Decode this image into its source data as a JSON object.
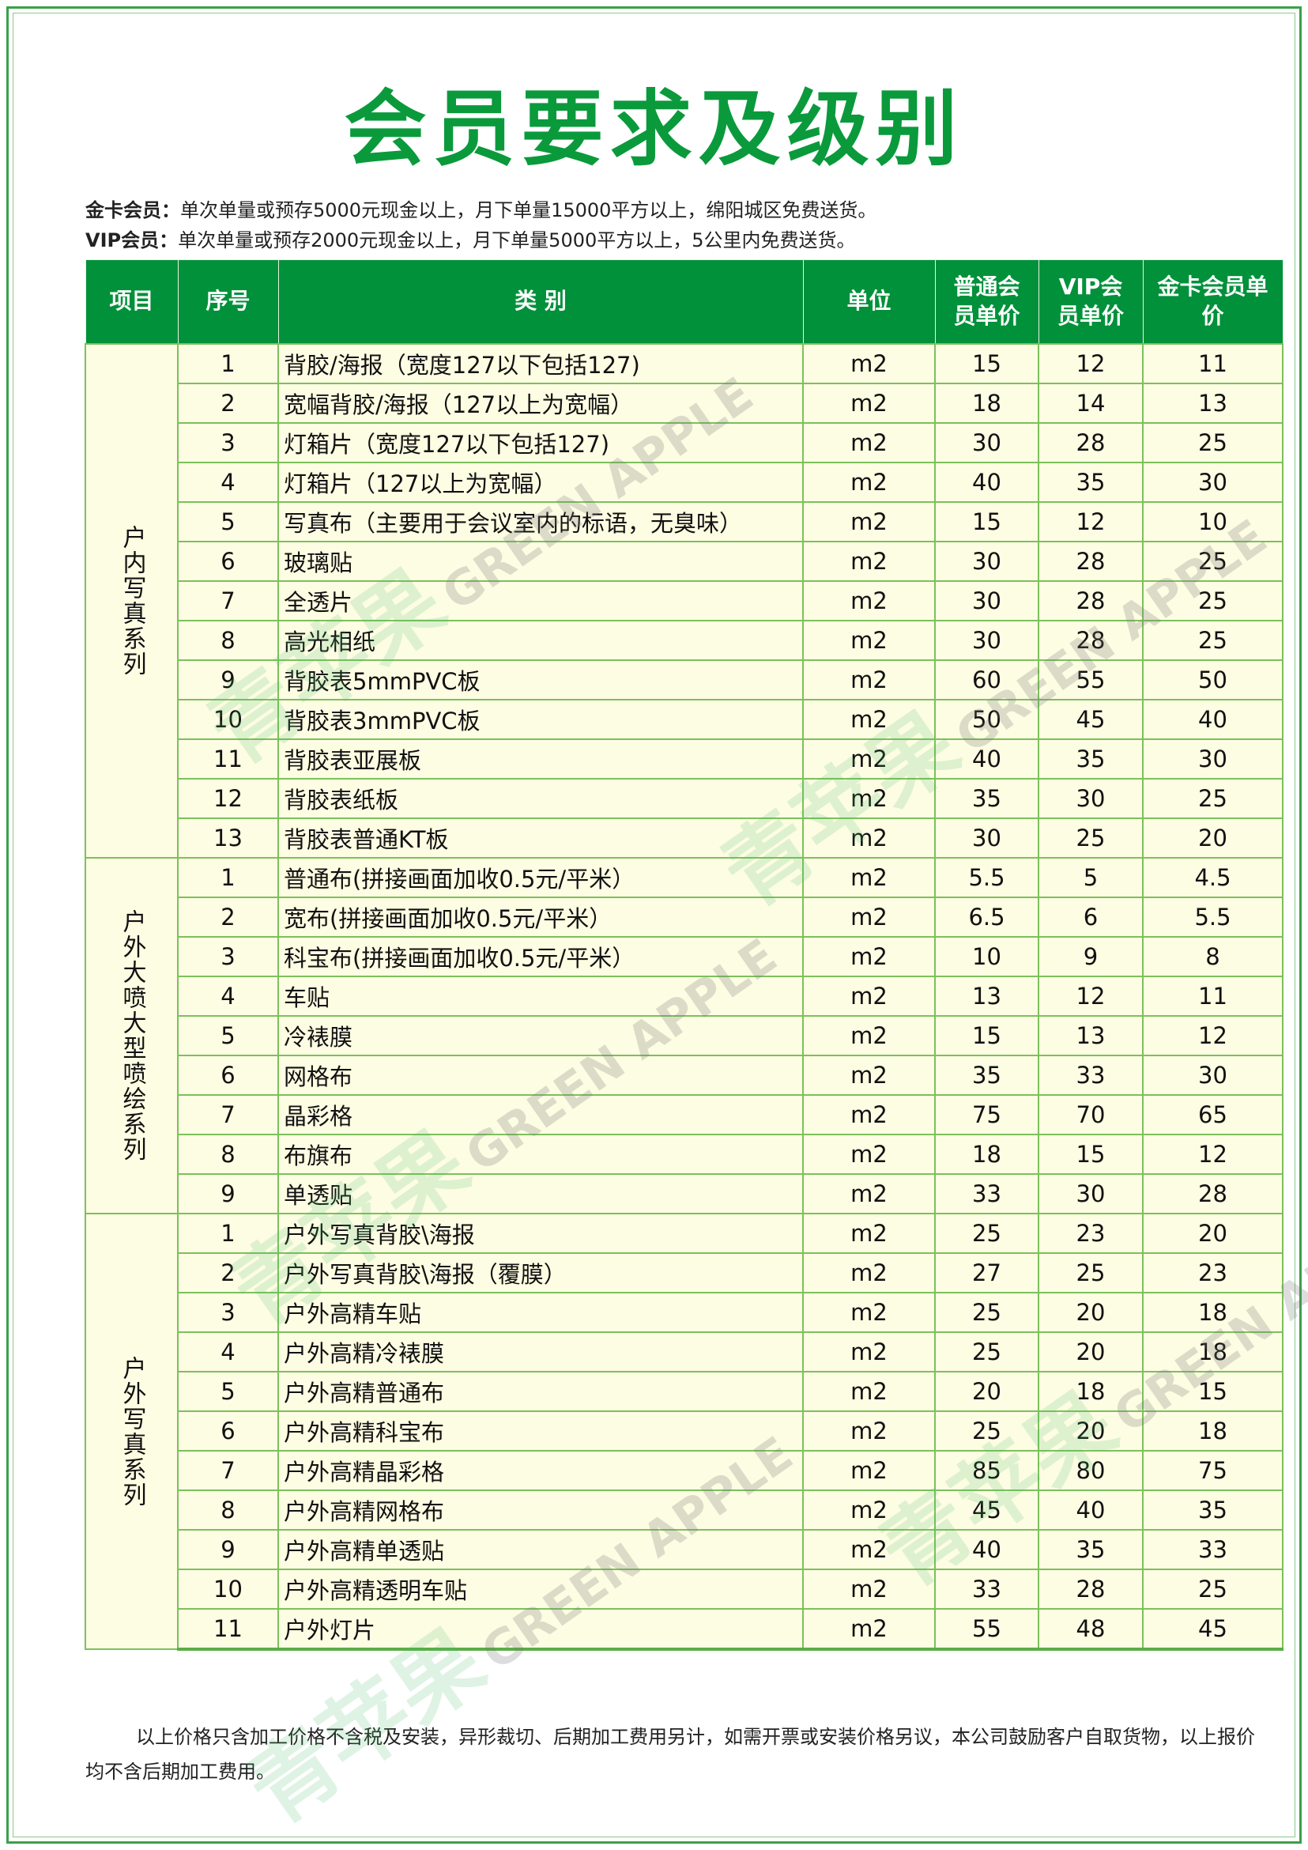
{
  "title": "会员要求及级别",
  "requirements": [
    {
      "label": "金卡会员：",
      "text": "单次单量或预存5000元现金以上，月下单量15000平方以上，绵阳城区免费送货。"
    },
    {
      "label": "VIP会员：",
      "text": "单次单量或预存2000元现金以上，月下单量5000平方以上，5公里内免费送货。"
    }
  ],
  "table": {
    "headers": [
      "项目",
      "序号",
      "类 别",
      "单位",
      "普通会员单价",
      "VIP会员单价",
      "金卡会员单价"
    ],
    "sections": [
      {
        "name": "户内写真系列",
        "rows": [
          [
            "1",
            "背胶/海报（宽度127以下包括127)",
            "m2",
            "15",
            "12",
            "11"
          ],
          [
            "2",
            "宽幅背胶/海报（127以上为宽幅）",
            "m2",
            "18",
            "14",
            "13"
          ],
          [
            "3",
            "灯箱片（宽度127以下包括127)",
            "m2",
            "30",
            "28",
            "25"
          ],
          [
            "4",
            "灯箱片（127以上为宽幅）",
            "m2",
            "40",
            "35",
            "30"
          ],
          [
            "5",
            "写真布（主要用于会议室内的标语，无臭味）",
            "m2",
            "15",
            "12",
            "10"
          ],
          [
            "6",
            "玻璃贴",
            "m2",
            "30",
            "28",
            "25"
          ],
          [
            "7",
            "全透片",
            "m2",
            "30",
            "28",
            "25"
          ],
          [
            "8",
            "高光相纸",
            "m2",
            "30",
            "28",
            "25"
          ],
          [
            "9",
            "背胶表5mmPVC板",
            "m2",
            "60",
            "55",
            "50"
          ],
          [
            "10",
            "背胶表3mmPVC板",
            "m2",
            "50",
            "45",
            "40"
          ],
          [
            "11",
            "背胶表亚展板",
            "m2",
            "40",
            "35",
            "30"
          ],
          [
            "12",
            "背胶表纸板",
            "m2",
            "35",
            "30",
            "25"
          ],
          [
            "13",
            "背胶表普通KT板",
            "m2",
            "30",
            "25",
            "20"
          ]
        ]
      },
      {
        "name": "户外大喷大型喷绘系列",
        "rows": [
          [
            "1",
            "普通布(拼接画面加收0.5元/平米）",
            "m2",
            "5.5",
            "5",
            "4.5"
          ],
          [
            "2",
            "宽布(拼接画面加收0.5元/平米）",
            "m2",
            "6.5",
            "6",
            "5.5"
          ],
          [
            "3",
            "科宝布(拼接画面加收0.5元/平米）",
            "m2",
            "10",
            "9",
            "8"
          ],
          [
            "4",
            "车贴",
            "m2",
            "13",
            "12",
            "11"
          ],
          [
            "5",
            "冷裱膜",
            "m2",
            "15",
            "13",
            "12"
          ],
          [
            "6",
            "网格布",
            "m2",
            "35",
            "33",
            "30"
          ],
          [
            "7",
            "晶彩格",
            "m2",
            "75",
            "70",
            "65"
          ],
          [
            "8",
            "布旗布",
            "m2",
            "18",
            "15",
            "12"
          ],
          [
            "9",
            "单透贴",
            "m2",
            "33",
            "30",
            "28"
          ]
        ]
      },
      {
        "name": "户外写真系列",
        "rows": [
          [
            "1",
            "户外写真背胶\\海报",
            "m2",
            "25",
            "23",
            "20"
          ],
          [
            "2",
            "户外写真背胶\\海报（覆膜）",
            "m2",
            "27",
            "25",
            "23"
          ],
          [
            "3",
            "户外高精车贴",
            "m2",
            "25",
            "20",
            "18"
          ],
          [
            "4",
            "户外高精冷裱膜",
            "m2",
            "25",
            "20",
            "18"
          ],
          [
            "5",
            "户外高精普通布",
            "m2",
            "20",
            "18",
            "15"
          ],
          [
            "6",
            "户外高精科宝布",
            "m2",
            "25",
            "20",
            "18"
          ],
          [
            "7",
            "户外高精晶彩格",
            "m2",
            "85",
            "80",
            "75"
          ],
          [
            "8",
            "户外高精网格布",
            "m2",
            "45",
            "40",
            "35"
          ],
          [
            "9",
            "户外高精单透贴",
            "m2",
            "40",
            "35",
            "33"
          ],
          [
            "10",
            "户外高精透明车贴",
            "m2",
            "33",
            "28",
            "25"
          ],
          [
            "11",
            "户外灯片",
            "m2",
            "55",
            "48",
            "45"
          ]
        ]
      }
    ]
  },
  "note": "以上价格只含加工价格不含税及安装，异形裁切、后期加工费用另计，如需开票或安装价格另议，本公司鼓励客户自取货物，以上报价均不含后期加工费用。",
  "watermark": {
    "cn": "青苹果",
    "en": "GREEN APPLE"
  },
  "colors": {
    "title": "#0a9a3c",
    "header_bg": "#00913a",
    "row_bg": "#fdfde3",
    "border": "#7cc05c"
  }
}
